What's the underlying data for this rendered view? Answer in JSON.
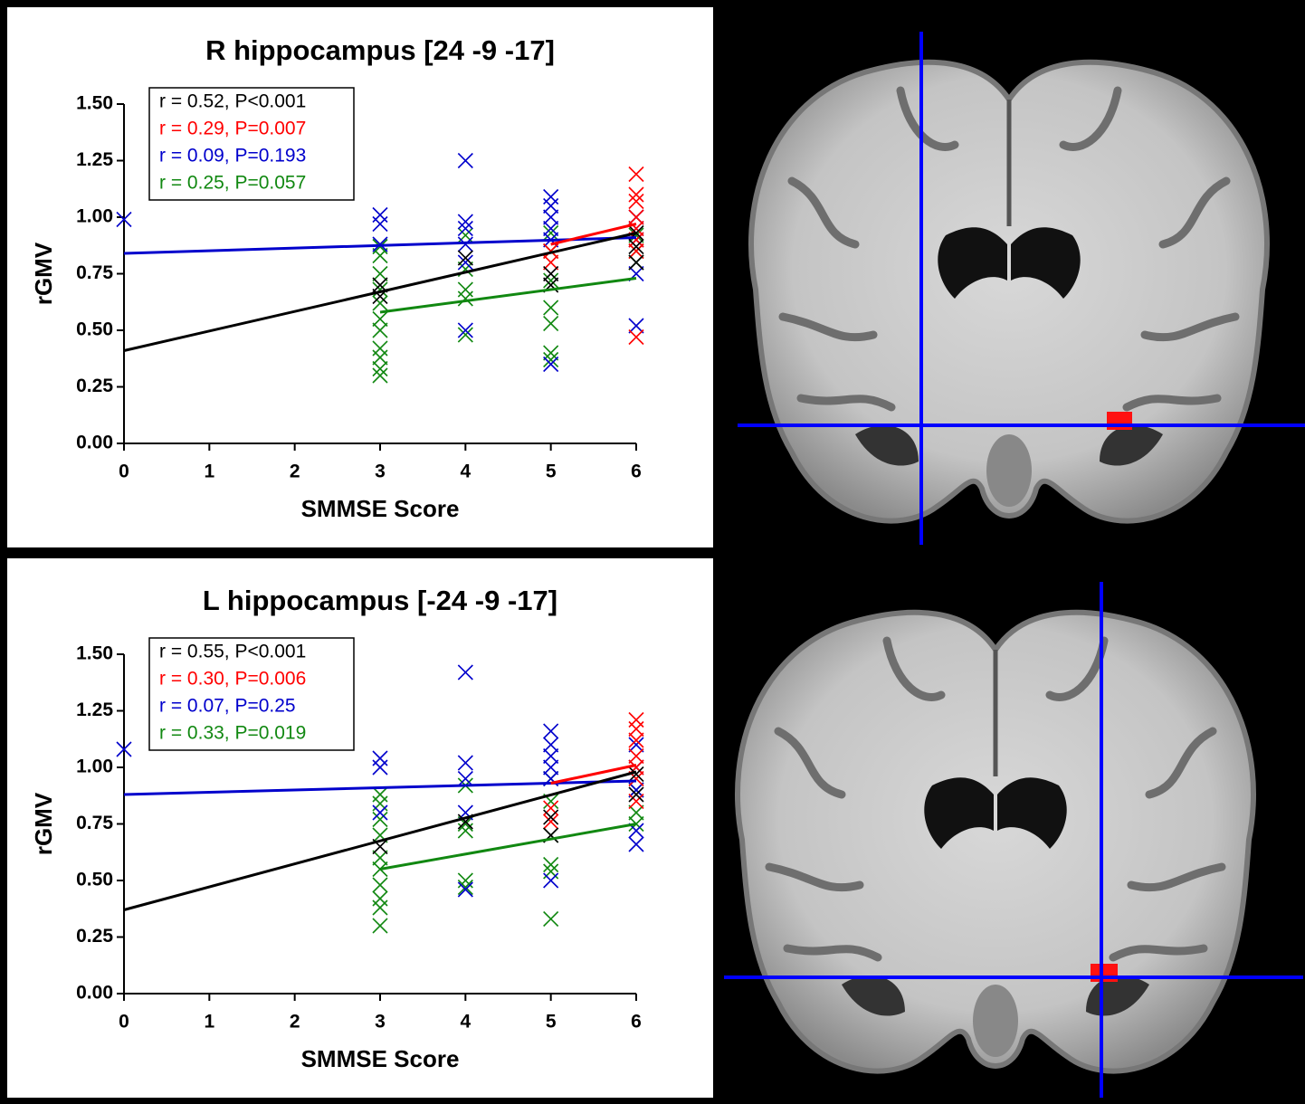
{
  "chart_data": [
    {
      "type": "scatter",
      "title": "R hippocampus [24 -9 -17]",
      "x_label": "SMMSE Score",
      "y_label": "rGMV",
      "xlim": [
        0,
        6
      ],
      "ylim": [
        0,
        1.5
      ],
      "xticks": [
        0,
        1,
        2,
        3,
        4,
        5,
        6
      ],
      "yticks": [
        {
          "value": 0,
          "label": "0.00"
        },
        {
          "value": 0.25,
          "label": "0.25"
        },
        {
          "value": 0.5,
          "label": "0.50"
        },
        {
          "value": 0.75,
          "label": "0.75"
        },
        {
          "value": 1,
          "label": "1.00"
        },
        {
          "value": 1.25,
          "label": "1.25"
        },
        {
          "value": 1.5,
          "label": "1.50"
        }
      ],
      "series": [
        {
          "name": "r = 0.52, P<0.001",
          "color": "#000000",
          "x": [
            6,
            6,
            6,
            5,
            5,
            4,
            3,
            3
          ],
          "values": [
            0.93,
            0.87,
            0.8,
            0.75,
            0.7,
            0.82,
            0.7,
            0.65
          ],
          "fit_x": [
            0,
            6
          ],
          "fit_y": [
            0.41,
            0.93
          ]
        },
        {
          "name": "r = 0.29, P=0.007",
          "color": "#ff0000",
          "x": [
            6,
            6,
            6,
            6,
            6,
            6,
            6,
            6,
            5,
            5
          ],
          "values": [
            1.19,
            1.1,
            1.07,
            1.0,
            0.95,
            0.9,
            0.85,
            0.47,
            0.85,
            0.8
          ],
          "fit_x": [
            5,
            6
          ],
          "fit_y": [
            0.88,
            0.97
          ]
        },
        {
          "name": "r = 0.09, P=0.193",
          "color": "#0000cc",
          "x": [
            0,
            3,
            3,
            3,
            4,
            4,
            4,
            4,
            4,
            4,
            5,
            5,
            5,
            5,
            5,
            5,
            6,
            6,
            6,
            6,
            6
          ],
          "values": [
            0.99,
            1.01,
            0.97,
            0.88,
            1.25,
            0.98,
            0.95,
            0.88,
            0.8,
            0.5,
            1.09,
            1.05,
            1.0,
            0.95,
            0.9,
            0.35,
            1.0,
            0.95,
            0.9,
            0.75,
            0.52
          ],
          "fit_x": [
            0,
            6
          ],
          "fit_y": [
            0.84,
            0.91
          ]
        },
        {
          "name": "r = 0.25, P=0.057",
          "color": "#118811",
          "x": [
            3,
            3,
            3,
            3,
            3,
            3,
            3,
            3,
            3,
            3,
            3,
            4,
            4,
            4,
            4,
            4,
            5,
            5,
            5,
            5,
            5,
            5,
            5,
            6,
            6,
            6
          ],
          "values": [
            0.87,
            0.83,
            0.75,
            0.68,
            0.62,
            0.55,
            0.5,
            0.42,
            0.38,
            0.33,
            0.3,
            0.92,
            0.77,
            0.68,
            0.64,
            0.48,
            0.93,
            0.85,
            0.72,
            0.6,
            0.53,
            0.4,
            0.37,
            0.92,
            0.85,
            0.8
          ],
          "fit_x": [
            3,
            6
          ],
          "fit_y": [
            0.58,
            0.73
          ]
        }
      ]
    },
    {
      "type": "scatter",
      "title": "L hippocampus [-24 -9 -17]",
      "x_label": "SMMSE Score",
      "y_label": "rGMV",
      "xlim": [
        0,
        6
      ],
      "ylim": [
        0,
        1.5
      ],
      "xticks": [
        0,
        1,
        2,
        3,
        4,
        5,
        6
      ],
      "yticks": [
        {
          "value": 0,
          "label": "0.00"
        },
        {
          "value": 0.25,
          "label": "0.25"
        },
        {
          "value": 0.5,
          "label": "0.50"
        },
        {
          "value": 0.75,
          "label": "0.75"
        },
        {
          "value": 1,
          "label": "1.00"
        },
        {
          "value": 1.25,
          "label": "1.25"
        },
        {
          "value": 1.5,
          "label": "1.50"
        }
      ],
      "series": [
        {
          "name": "r = 0.55, P<0.001",
          "color": "#000000",
          "x": [
            6,
            6,
            5,
            5,
            4,
            3
          ],
          "values": [
            0.97,
            0.88,
            0.78,
            0.7,
            0.76,
            0.65
          ],
          "fit_x": [
            0,
            6
          ],
          "fit_y": [
            0.37,
            0.98
          ]
        },
        {
          "name": "r = 0.30, P=0.006",
          "color": "#ff0000",
          "x": [
            6,
            6,
            6,
            6,
            6,
            6,
            6,
            5,
            5
          ],
          "values": [
            1.21,
            1.17,
            1.12,
            1.05,
            1.0,
            0.95,
            0.85,
            0.82,
            0.76
          ],
          "fit_x": [
            5,
            6
          ],
          "fit_y": [
            0.93,
            1.01
          ]
        },
        {
          "name": "r = 0.07, P=0.25",
          "color": "#0000cc",
          "x": [
            0,
            3,
            3,
            3,
            4,
            4,
            4,
            4,
            4,
            5,
            5,
            5,
            5,
            5,
            5,
            6,
            6,
            6,
            6,
            6
          ],
          "values": [
            1.08,
            1.04,
            1.0,
            0.8,
            1.42,
            1.02,
            0.95,
            0.8,
            0.46,
            1.16,
            1.1,
            1.05,
            1.0,
            0.95,
            0.5,
            1.1,
            1.0,
            0.9,
            0.72,
            0.66
          ],
          "fit_x": [
            0,
            6
          ],
          "fit_y": [
            0.88,
            0.94
          ]
        },
        {
          "name": "r = 0.33, P=0.019",
          "color": "#118811",
          "x": [
            3,
            3,
            3,
            3,
            3,
            3,
            3,
            3,
            3,
            3,
            4,
            4,
            4,
            4,
            4,
            5,
            5,
            5,
            5,
            5,
            5,
            6,
            6,
            6
          ],
          "values": [
            0.88,
            0.84,
            0.77,
            0.7,
            0.6,
            0.55,
            0.48,
            0.42,
            0.38,
            0.3,
            0.92,
            0.75,
            0.72,
            0.5,
            0.47,
            0.95,
            0.85,
            0.7,
            0.57,
            0.54,
            0.33,
            0.9,
            0.8,
            0.75
          ],
          "fit_x": [
            3,
            6
          ],
          "fit_y": [
            0.55,
            0.75
          ]
        }
      ]
    }
  ]
}
